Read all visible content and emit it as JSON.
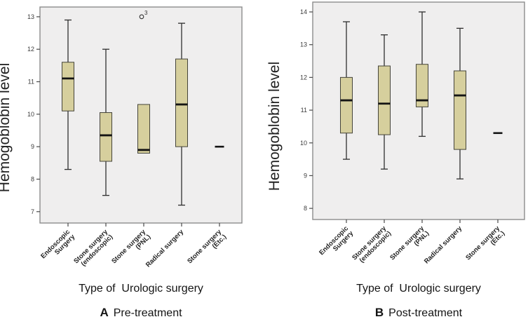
{
  "colors": {
    "background": "#ffffff",
    "panel_bg": "#efeeee",
    "panel_border": "#8c8c8c",
    "box_fill": "#d6cf9d",
    "box_stroke": "#45443a",
    "line": "#2f2f2f",
    "median": "#141414",
    "tick": "#4a4a4a"
  },
  "chart_data": [
    {
      "type": "box",
      "panel_label": "A",
      "panel_caption": "Pre-treatment",
      "ylabel": "Hemogoblobin level",
      "xlabel": "Type of  Urologic surgery",
      "ylim": [
        6.65,
        13.3
      ],
      "yticks": [
        7,
        8,
        9,
        10,
        11,
        12,
        13
      ],
      "grid": "off",
      "categories": [
        [
          "Endoscopic",
          "Surgery"
        ],
        [
          "Stone surgery",
          "(endoscopic)"
        ],
        [
          "Stone surgery",
          "(PNL)"
        ],
        [
          "Radical surgery"
        ],
        [
          "Stone surgery",
          "(Etc.)"
        ]
      ],
      "boxes": [
        {
          "whisker_low": 8.3,
          "q1": 10.1,
          "median": 11.1,
          "q3": 11.6,
          "whisker_high": 12.9
        },
        {
          "whisker_low": 7.5,
          "q1": 8.55,
          "median": 9.35,
          "q3": 10.05,
          "whisker_high": 12.0
        },
        {
          "whisker_low": 8.8,
          "q1": 8.8,
          "median": 8.9,
          "q3": 10.3,
          "whisker_high": 10.3
        },
        {
          "whisker_low": 7.2,
          "q1": 9.0,
          "median": 10.3,
          "q3": 11.7,
          "whisker_high": 12.8
        },
        {
          "single_value": 9.0
        }
      ],
      "outliers": [
        {
          "category_index": 2,
          "value": 13.0,
          "label": "3"
        }
      ]
    },
    {
      "type": "box",
      "panel_label": "B",
      "panel_caption": "Post-treatment",
      "ylabel": "Hemogoblobin level",
      "xlabel": "Type of  Urologic surgery",
      "ylim": [
        7.66,
        14.3
      ],
      "yticks": [
        8,
        9,
        10,
        11,
        12,
        13,
        14
      ],
      "grid": "off",
      "categories": [
        [
          "Endoscopic",
          "Surgery"
        ],
        [
          "Stone surgery",
          "(endoscopic)"
        ],
        [
          "Stone surgery",
          "(PNL)"
        ],
        [
          "Radical surgery"
        ],
        [
          "Stone surgery",
          "(Etc.)"
        ]
      ],
      "boxes": [
        {
          "whisker_low": 9.5,
          "q1": 10.3,
          "median": 11.3,
          "q3": 12.0,
          "whisker_high": 13.7
        },
        {
          "whisker_low": 9.2,
          "q1": 10.25,
          "median": 11.2,
          "q3": 12.35,
          "whisker_high": 13.3
        },
        {
          "whisker_low": 10.2,
          "q1": 11.1,
          "median": 11.3,
          "q3": 12.4,
          "whisker_high": 14.0
        },
        {
          "whisker_low": 8.9,
          "q1": 9.8,
          "median": 11.45,
          "q3": 12.2,
          "whisker_high": 13.5
        },
        {
          "single_value": 10.3
        }
      ],
      "outliers": []
    }
  ]
}
